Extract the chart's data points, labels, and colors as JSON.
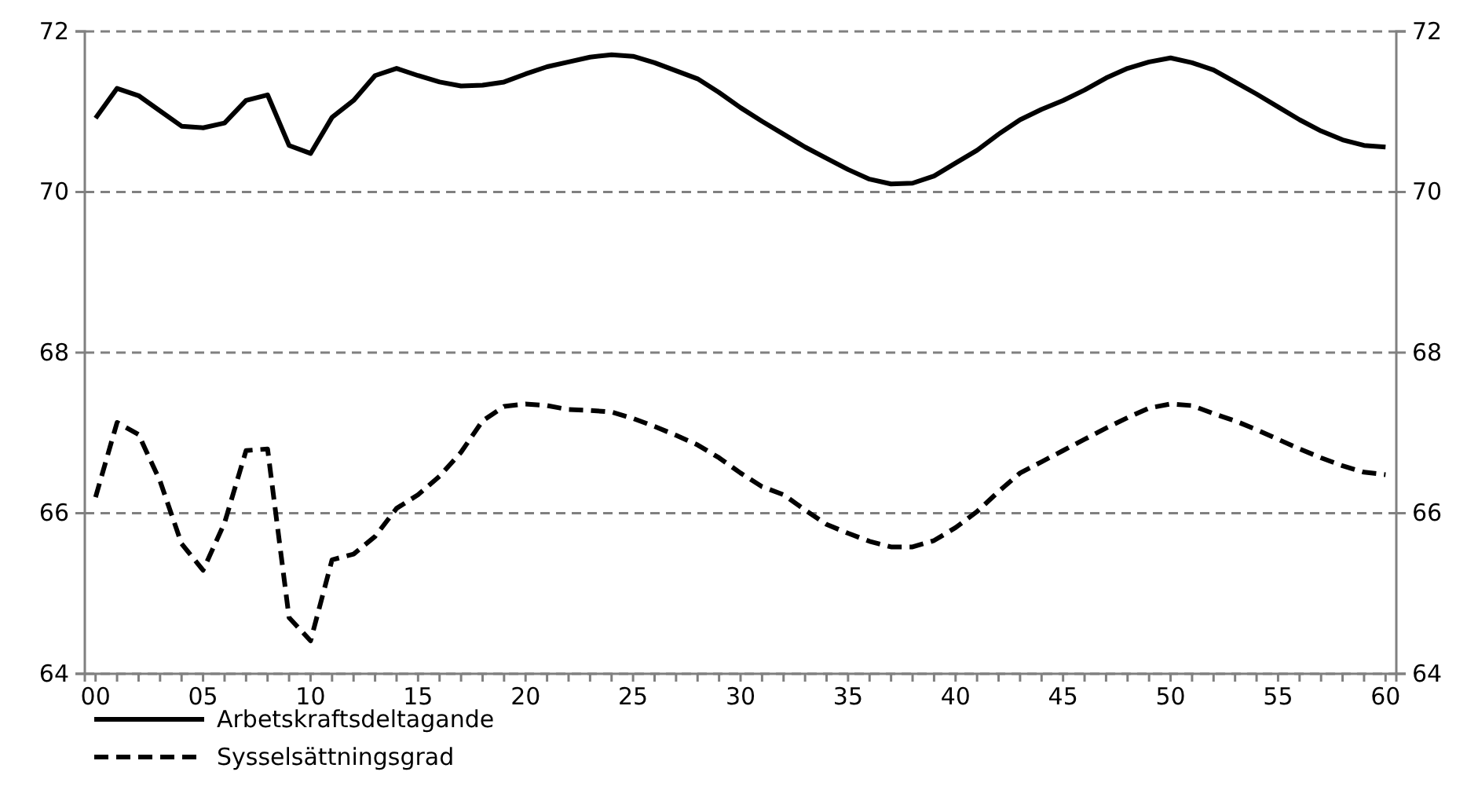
{
  "chart_data": {
    "type": "line",
    "x": [
      0,
      1,
      2,
      3,
      4,
      5,
      6,
      7,
      8,
      9,
      10,
      11,
      12,
      13,
      14,
      15,
      16,
      17,
      18,
      19,
      20,
      21,
      22,
      23,
      24,
      25,
      26,
      27,
      28,
      29,
      30,
      31,
      32,
      33,
      34,
      35,
      36,
      37,
      38,
      39,
      40,
      41,
      42,
      43,
      44,
      45,
      46,
      47,
      48,
      49,
      50,
      51,
      52,
      53,
      54,
      55,
      56,
      57,
      58,
      59,
      60
    ],
    "series": [
      {
        "name": "Arbetskraftsdeltagande",
        "color": "#000000",
        "line_style": "solid",
        "values": [
          70.92,
          71.29,
          71.2,
          71.01,
          70.82,
          70.8,
          70.86,
          71.14,
          71.21,
          70.58,
          70.48,
          70.93,
          71.14,
          71.45,
          71.54,
          71.45,
          71.37,
          71.32,
          71.33,
          71.37,
          71.47,
          71.56,
          71.62,
          71.68,
          71.71,
          71.69,
          71.61,
          71.51,
          71.41,
          71.24,
          71.05,
          70.88,
          70.72,
          70.56,
          70.42,
          70.28,
          70.16,
          70.1,
          70.11,
          70.2,
          70.36,
          70.52,
          70.72,
          70.9,
          71.03,
          71.14,
          71.27,
          71.42,
          71.54,
          71.62,
          71.67,
          71.61,
          71.52,
          71.37,
          71.22,
          71.06,
          70.9,
          70.76,
          70.65,
          70.58,
          70.56
        ]
      },
      {
        "name": "Sysselsättningsgrad",
        "color": "#000000",
        "line_style": "dashed",
        "values": [
          66.2,
          67.13,
          66.98,
          66.4,
          65.62,
          65.29,
          65.88,
          66.78,
          66.8,
          64.7,
          64.41,
          65.42,
          65.49,
          65.71,
          66.06,
          66.23,
          66.46,
          66.76,
          67.15,
          67.33,
          67.36,
          67.34,
          67.29,
          67.28,
          67.26,
          67.18,
          67.08,
          66.97,
          66.85,
          66.69,
          66.5,
          66.33,
          66.23,
          66.04,
          65.86,
          65.75,
          65.65,
          65.58,
          65.58,
          65.66,
          65.82,
          66.02,
          66.27,
          66.5,
          66.64,
          66.78,
          66.92,
          67.06,
          67.19,
          67.31,
          67.36,
          67.34,
          67.24,
          67.15,
          67.04,
          66.92,
          66.8,
          66.69,
          66.59,
          66.51,
          66.48
        ]
      }
    ],
    "xlim": [
      -0.5,
      60.5
    ],
    "xticks": [
      {
        "value": 0,
        "label": "00"
      },
      {
        "value": 5,
        "label": "05"
      },
      10,
      15,
      20,
      25,
      30,
      35,
      40,
      45,
      50,
      55,
      60,
      {
        "value": 1,
        "label": null
      },
      {
        "value": 2,
        "label": null
      },
      {
        "value": 3,
        "label": null
      },
      {
        "value": 4,
        "label": null
      },
      {
        "value": 6,
        "label": null
      },
      {
        "value": 7,
        "label": null
      },
      {
        "value": 8,
        "label": null
      },
      {
        "value": 9,
        "label": null
      },
      {
        "value": 11,
        "label": null
      },
      {
        "value": 12,
        "label": null
      },
      {
        "value": 13,
        "label": null
      },
      {
        "value": 14,
        "label": null
      },
      {
        "value": 16,
        "label": null
      },
      {
        "value": 17,
        "label": null
      },
      {
        "value": 18,
        "label": null
      },
      {
        "value": 19,
        "label": null
      },
      {
        "value": 21,
        "label": null
      },
      {
        "value": 22,
        "label": null
      },
      {
        "value": 23,
        "label": null
      },
      {
        "value": 24,
        "label": null
      },
      {
        "value": 26,
        "label": null
      },
      {
        "value": 27,
        "label": null
      },
      {
        "value": 28,
        "label": null
      },
      {
        "value": 29,
        "label": null
      },
      {
        "value": 31,
        "label": null
      },
      {
        "value": 32,
        "label": null
      },
      {
        "value": 33,
        "label": null
      },
      {
        "value": 34,
        "label": null
      },
      {
        "value": 36,
        "label": null
      },
      {
        "value": 37,
        "label": null
      },
      {
        "value": 38,
        "label": null
      },
      {
        "value": 39,
        "label": null
      },
      {
        "value": 41,
        "label": null
      },
      {
        "value": 42,
        "label": null
      },
      {
        "value": 43,
        "label": null
      },
      {
        "value": 44,
        "label": null
      },
      {
        "value": 46,
        "label": null
      },
      {
        "value": 47,
        "label": null
      },
      {
        "value": 48,
        "label": null
      },
      {
        "value": 49,
        "label": null
      },
      {
        "value": 51,
        "label": null
      },
      {
        "value": 52,
        "label": null
      },
      {
        "value": 53,
        "label": null
      },
      {
        "value": 54,
        "label": null
      },
      {
        "value": 56,
        "label": null
      },
      {
        "value": 57,
        "label": null
      },
      {
        "value": 58,
        "label": null
      },
      {
        "value": 59,
        "label": null
      }
    ],
    "ylim": [
      64,
      72
    ],
    "yticks": [
      64,
      66,
      68,
      70,
      72
    ],
    "y2lim": [
      64,
      72
    ],
    "y2ticks": [
      64,
      66,
      68,
      70,
      72
    ],
    "grid": "y",
    "legend": "bottom",
    "marker": "none"
  }
}
